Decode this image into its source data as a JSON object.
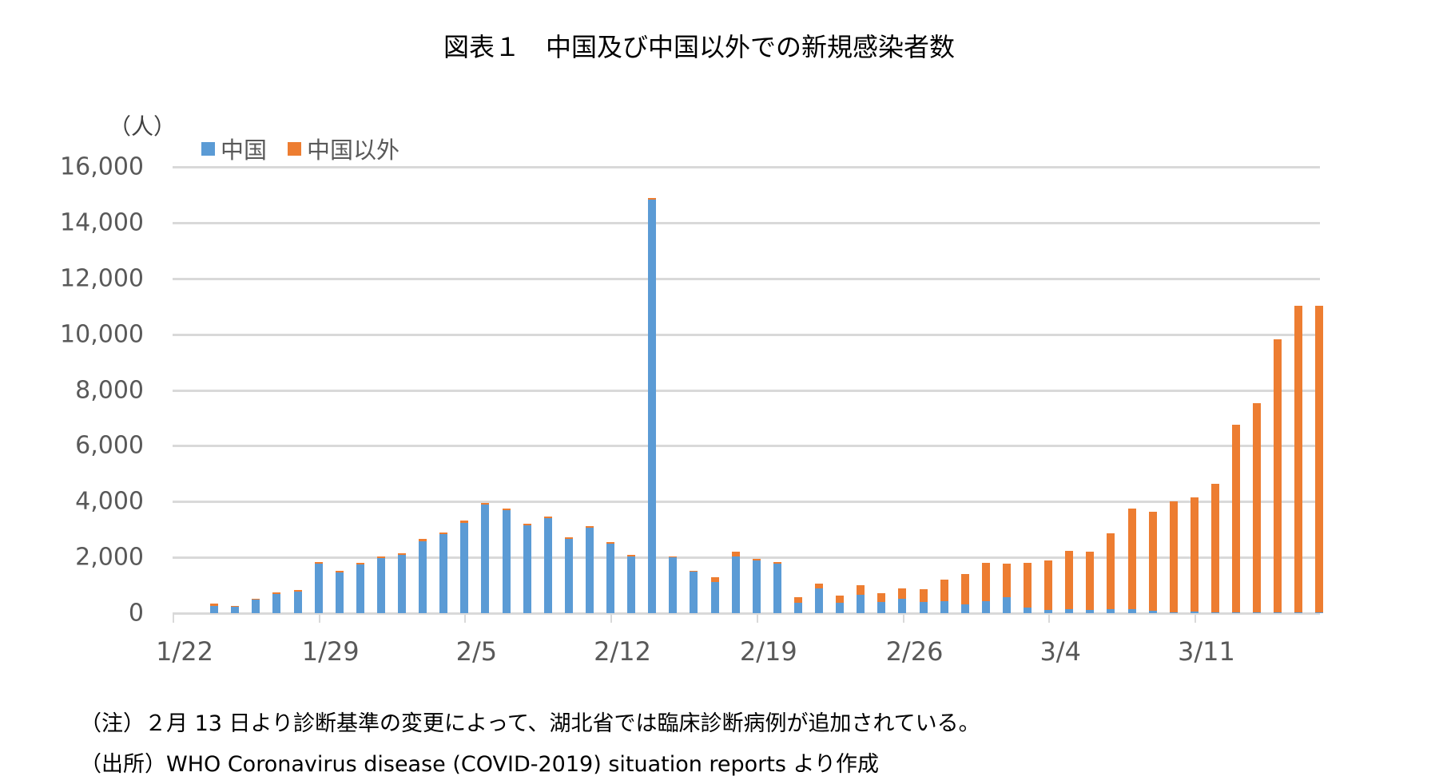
{
  "title": "図表１　中国及び中国以外での新規感染者数",
  "footnotes": {
    "note": "（注）２月 13 日より診断基準の変更によって、湖北省では臨床診断病例が追加されている。",
    "source": "（出所）WHO  Coronavirus disease (COVID-2019) situation reports より作成"
  },
  "chart_data": {
    "type": "bar",
    "stacked": true,
    "title": "図表１　中国及び中国以外での新規感染者数",
    "xlabel": "",
    "ylabel": "（人）",
    "ylim": [
      0,
      16000
    ],
    "yticks": [
      "0",
      "2,000",
      "4,000",
      "6,000",
      "8,000",
      "10,000",
      "12,000",
      "14,000",
      "16,000"
    ],
    "ytick_values": [
      0,
      2000,
      4000,
      6000,
      8000,
      10000,
      12000,
      14000,
      16000
    ],
    "xticks": [
      "1/22",
      "1/29",
      "2/5",
      "2/12",
      "2/19",
      "2/26",
      "3/4",
      "3/11"
    ],
    "grid": true,
    "legend_position": "top-left",
    "legend": [
      "中国",
      "中国以外"
    ],
    "colors": {
      "中国": "#5b9bd5",
      "中国以外": "#ed7d31"
    },
    "categories": [
      "1/22",
      "1/23",
      "1/24",
      "1/25",
      "1/26",
      "1/27",
      "1/28",
      "1/29",
      "1/30",
      "1/31",
      "2/1",
      "2/2",
      "2/3",
      "2/4",
      "2/5",
      "2/6",
      "2/7",
      "2/8",
      "2/9",
      "2/10",
      "2/11",
      "2/12",
      "2/13",
      "2/14",
      "2/15",
      "2/16",
      "2/17",
      "2/18",
      "2/19",
      "2/20",
      "2/21",
      "2/22",
      "2/23",
      "2/24",
      "2/25",
      "2/26",
      "2/27",
      "2/28",
      "2/29",
      "3/1",
      "3/2",
      "3/3",
      "3/4",
      "3/5",
      "3/6",
      "3/7",
      "3/8",
      "3/9",
      "3/10",
      "3/11",
      "3/12",
      "3/13",
      "3/14",
      "3/15",
      "3/16"
    ],
    "series": [
      {
        "name": "中国",
        "values": [
          0,
          270,
          230,
          480,
          700,
          780,
          1770,
          1460,
          1740,
          1980,
          2100,
          2590,
          2830,
          3240,
          3890,
          3700,
          3150,
          3400,
          2650,
          3050,
          2480,
          2020,
          14840,
          1990,
          1480,
          1130,
          2040,
          1880,
          1760,
          370,
          890,
          380,
          650,
          410,
          520,
          410,
          430,
          320,
          430,
          570,
          210,
          120,
          140,
          100,
          150,
          140,
          80,
          40,
          60,
          40,
          30,
          20,
          30,
          30,
          20
        ],
        "notes": "estimated from pixel heights"
      },
      {
        "name": "中国以外",
        "values": [
          0,
          60,
          40,
          40,
          40,
          40,
          60,
          50,
          60,
          60,
          60,
          60,
          60,
          70,
          60,
          60,
          60,
          60,
          60,
          60,
          60,
          60,
          40,
          40,
          40,
          170,
          150,
          80,
          80,
          190,
          160,
          240,
          360,
          300,
          380,
          460,
          760,
          1080,
          1370,
          1210,
          1600,
          1780,
          2080,
          2110,
          2720,
          3610,
          3560,
          3960,
          4090,
          4600,
          6730,
          7500,
          9790,
          10980,
          11000
        ]
      }
    ]
  }
}
